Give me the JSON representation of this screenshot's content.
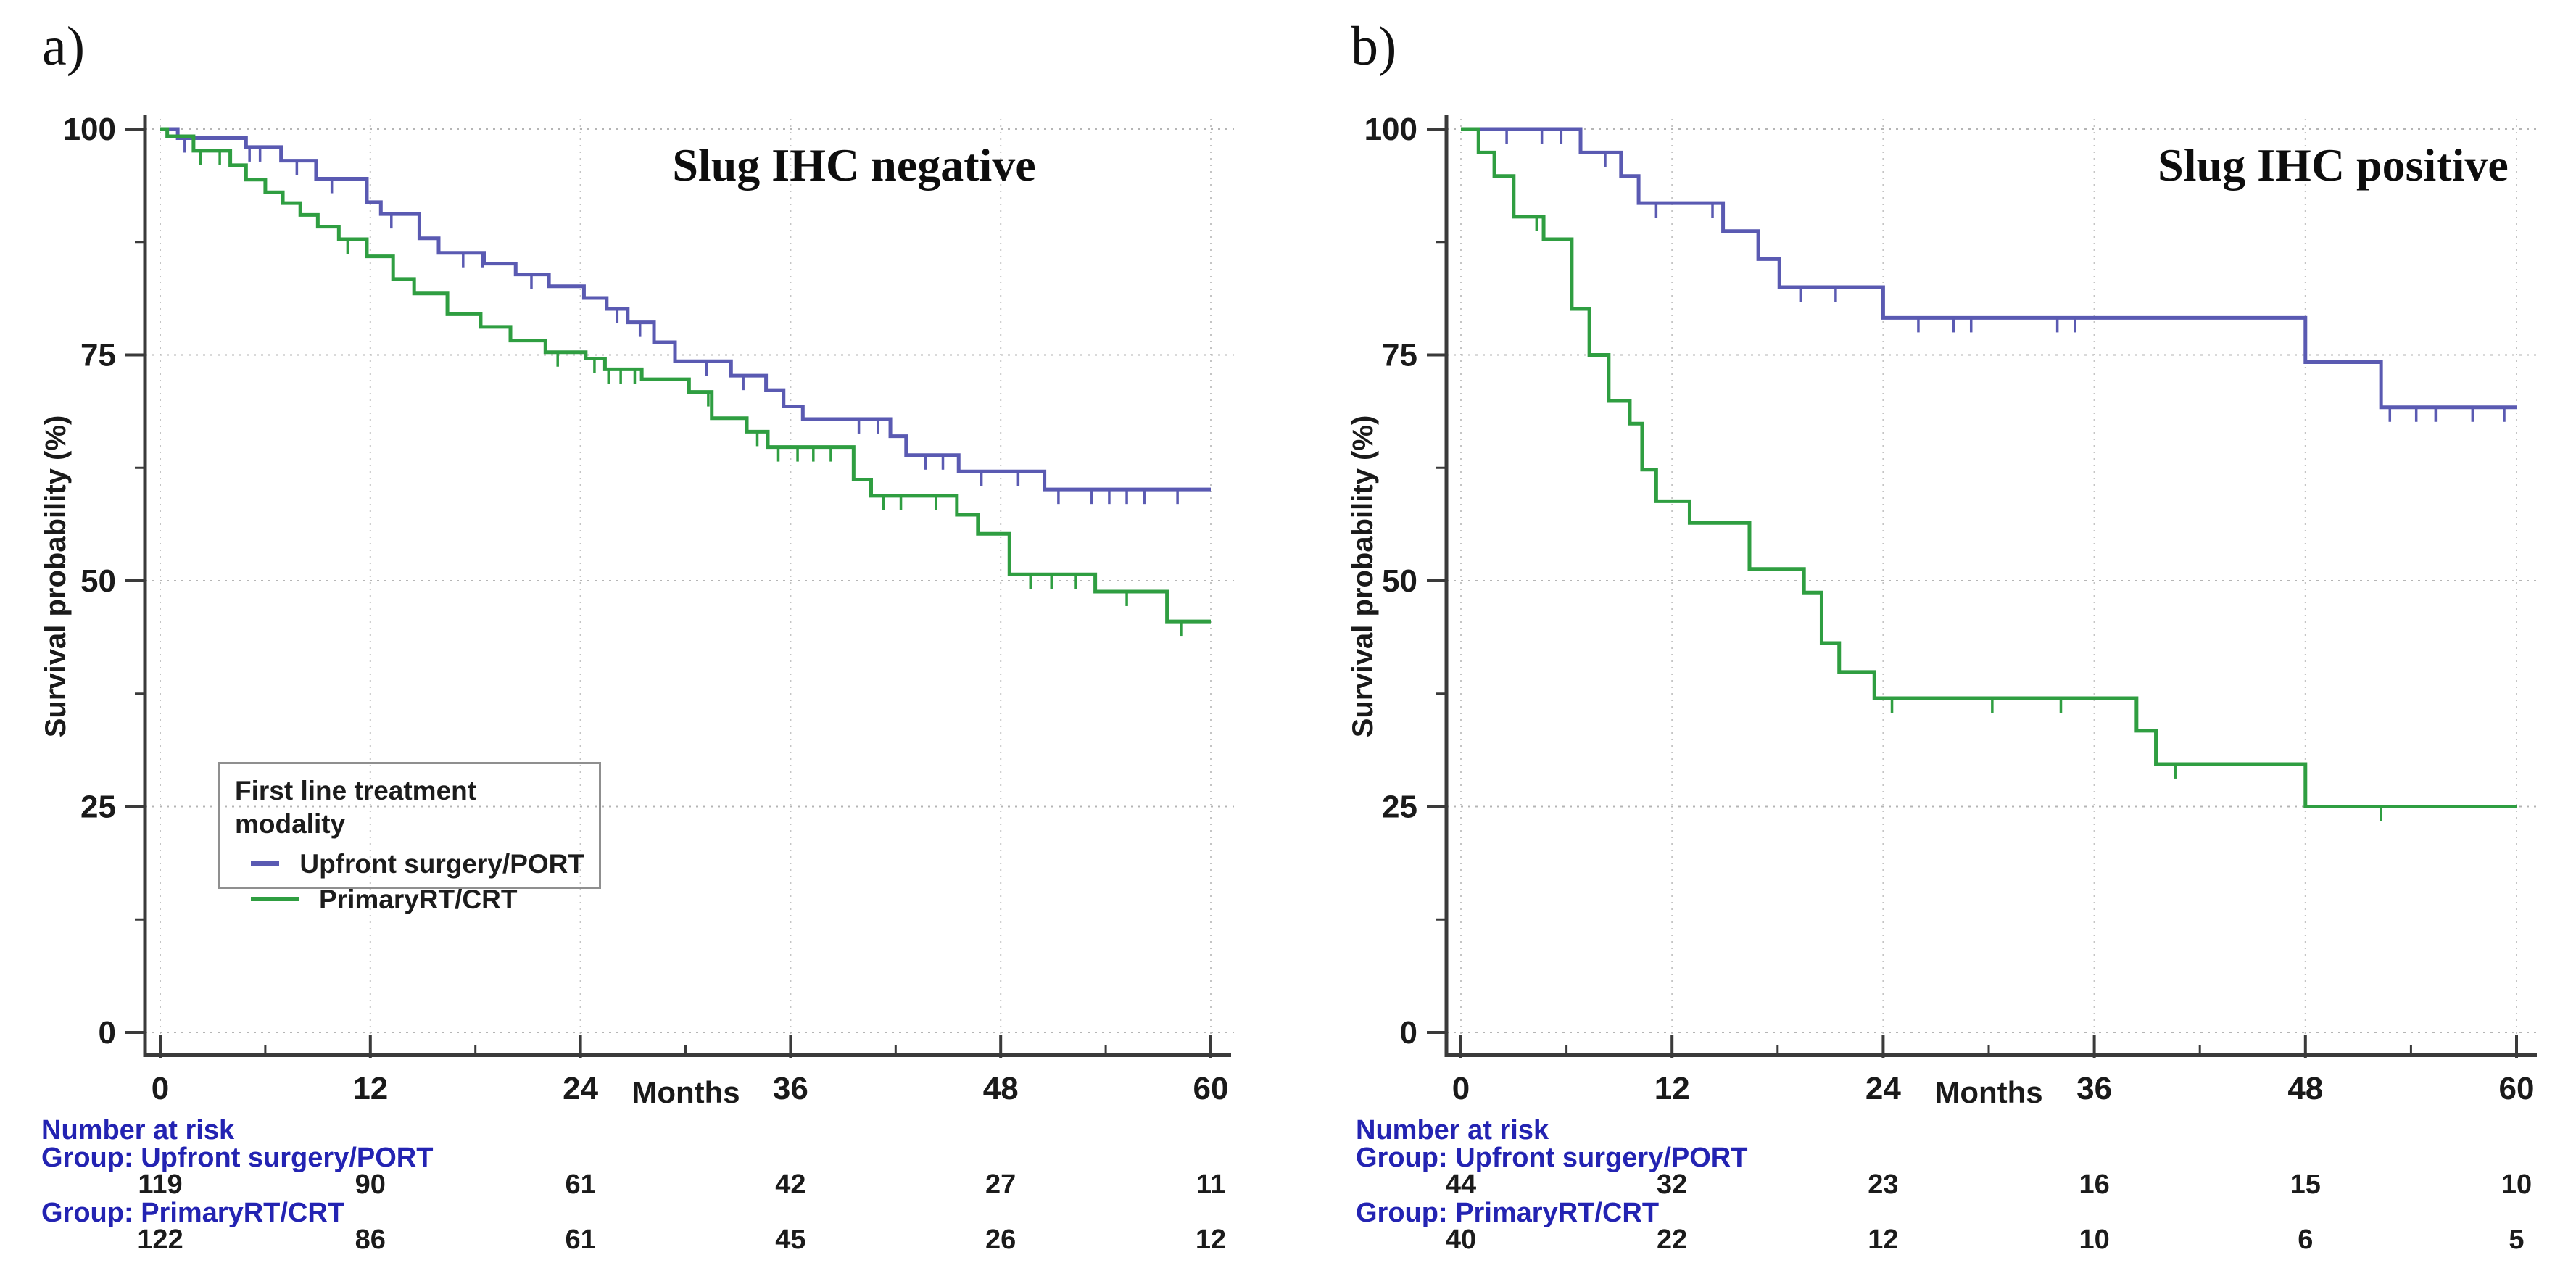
{
  "figure_type": "kaplan-meier-survival-curves",
  "chart_data": [
    {
      "type": "line",
      "subtype": "step-survival",
      "panel_label": "a)",
      "title": "Slug IHC negative",
      "xlabel": "Months",
      "ylabel": "Survival probability (%)",
      "xlim": [
        0,
        60
      ],
      "ylim": [
        0,
        100
      ],
      "x_ticks": [
        0,
        12,
        24,
        36,
        48,
        60
      ],
      "x_minor_ticks": [
        6,
        18,
        30,
        42,
        54
      ],
      "y_ticks": [
        100,
        75,
        50,
        25,
        0
      ],
      "y_minor_ticks": [
        87.5,
        62.5,
        37.5,
        12.5
      ],
      "grid": true,
      "legend": {
        "visible": true,
        "position": "inside-left-lower",
        "title": "First line treatment modality"
      },
      "series": [
        {
          "name": "Upfront surgery/PORT",
          "color": "#5a5ab2",
          "steps": [
            [
              0,
              100
            ],
            [
              1,
              99
            ],
            [
              4.9,
              98
            ],
            [
              6.9,
              96.5
            ],
            [
              8.9,
              94.5
            ],
            [
              11.8,
              91.9
            ],
            [
              12.6,
              90.6
            ],
            [
              14.8,
              87.9
            ],
            [
              15.9,
              86.3
            ],
            [
              18.5,
              85.1
            ],
            [
              20.3,
              83.9
            ],
            [
              22.2,
              82.6
            ],
            [
              24.2,
              81.3
            ],
            [
              25.5,
              80.1
            ],
            [
              26.7,
              78.6
            ],
            [
              28.2,
              76.4
            ],
            [
              29.4,
              74.3
            ],
            [
              32.6,
              72.7
            ],
            [
              34.6,
              71.1
            ],
            [
              35.6,
              69.3
            ],
            [
              36.7,
              67.9
            ],
            [
              41.7,
              66
            ],
            [
              42.6,
              63.9
            ],
            [
              45.6,
              62.1
            ],
            [
              50.5,
              60.1
            ],
            [
              60,
              60.1
            ]
          ],
          "censor_ticks": [
            1.4,
            5.1,
            5.7,
            7.8,
            9.8,
            13.2,
            17.3,
            18.4,
            21.2,
            26.1,
            27.4,
            31.2,
            33.3,
            39.9,
            41,
            43.7,
            44.7,
            46.9,
            49,
            51.3,
            53.2,
            54.2,
            55.2,
            56.2,
            58.1
          ]
        },
        {
          "name": "PrimaryRT/CRT",
          "color": "#2f9e41",
          "steps": [
            [
              0,
              100
            ],
            [
              0.4,
              99.2
            ],
            [
              1.9,
              97.6
            ],
            [
              4,
              96
            ],
            [
              4.9,
              94.4
            ],
            [
              6,
              93
            ],
            [
              7,
              91.8
            ],
            [
              8,
              90.5
            ],
            [
              9,
              89.2
            ],
            [
              10.2,
              87.8
            ],
            [
              11.8,
              85.9
            ],
            [
              13.3,
              83.4
            ],
            [
              14.5,
              81.8
            ],
            [
              16.4,
              79.5
            ],
            [
              18.3,
              78.1
            ],
            [
              20,
              76.6
            ],
            [
              22,
              75.3
            ],
            [
              24.3,
              74.6
            ],
            [
              25.4,
              73.4
            ],
            [
              27.5,
              72.3
            ],
            [
              30.2,
              70.9
            ],
            [
              31.5,
              68
            ],
            [
              33.5,
              66.5
            ],
            [
              34.7,
              64.8
            ],
            [
              39.6,
              61.2
            ],
            [
              40.6,
              59.4
            ],
            [
              45.5,
              57.3
            ],
            [
              46.7,
              55.2
            ],
            [
              48.5,
              50.7
            ],
            [
              53.4,
              48.8
            ],
            [
              57.5,
              45.5
            ],
            [
              60,
              45.5
            ]
          ],
          "censor_ticks": [
            2.3,
            3.4,
            10.7,
            22.7,
            24.8,
            25.6,
            26.3,
            27.1,
            31.3,
            34.1,
            35.3,
            36.4,
            37.3,
            38.3,
            41.3,
            42.3,
            44.3,
            49.7,
            50.9,
            52.3,
            55.2,
            58.3
          ]
        }
      ],
      "number_at_risk": {
        "header": "Number at risk",
        "text_color": "#2323b2",
        "groups": [
          {
            "label": "Group: Upfront surgery/PORT",
            "values": [
              119,
              90,
              61,
              42,
              27,
              11
            ]
          },
          {
            "label": "Group: PrimaryRT/CRT",
            "values": [
              122,
              86,
              61,
              45,
              26,
              12
            ]
          }
        ]
      }
    },
    {
      "type": "line",
      "subtype": "step-survival",
      "panel_label": "b)",
      "title": "Slug IHC positive",
      "xlabel": "Months",
      "ylabel": "Survival probability (%)",
      "xlim": [
        0,
        60
      ],
      "ylim": [
        0,
        100
      ],
      "x_ticks": [
        0,
        12,
        24,
        36,
        48,
        60
      ],
      "x_minor_ticks": [
        6,
        18,
        30,
        42,
        54
      ],
      "y_ticks": [
        100,
        75,
        50,
        25,
        0
      ],
      "y_minor_ticks": [
        87.5,
        62.5,
        37.5,
        12.5
      ],
      "grid": true,
      "legend": {
        "visible": false
      },
      "series": [
        {
          "name": "Upfront surgery/PORT",
          "color": "#5a5ab2",
          "steps": [
            [
              0,
              100
            ],
            [
              6.8,
              97.4
            ],
            [
              9.1,
              94.8
            ],
            [
              10.1,
              91.8
            ],
            [
              14.9,
              88.7
            ],
            [
              16.9,
              85.6
            ],
            [
              18.1,
              82.5
            ],
            [
              24,
              79.1
            ],
            [
              48,
              74.2
            ],
            [
              52.3,
              69.2
            ],
            [
              60,
              69.2
            ]
          ],
          "censor_ticks": [
            2.6,
            4.6,
            5.7,
            8.2,
            11.1,
            14.3,
            19.3,
            21.3,
            26,
            28,
            29,
            33.9,
            34.9,
            52.8,
            54.3,
            55.4,
            57.5,
            59.3
          ]
        },
        {
          "name": "PrimaryRT/CRT",
          "color": "#2f9e41",
          "steps": [
            [
              0,
              100
            ],
            [
              1,
              97.4
            ],
            [
              1.9,
              94.8
            ],
            [
              3,
              90.3
            ],
            [
              4.7,
              87.8
            ],
            [
              6.3,
              80.1
            ],
            [
              7.3,
              75
            ],
            [
              8.4,
              69.9
            ],
            [
              9.6,
              67.4
            ],
            [
              10.3,
              62.3
            ],
            [
              11.1,
              58.8
            ],
            [
              13,
              56.4
            ],
            [
              16.4,
              51.3
            ],
            [
              19.5,
              48.7
            ],
            [
              20.5,
              43.1
            ],
            [
              21.5,
              39.9
            ],
            [
              23.5,
              37
            ],
            [
              38.4,
              33.4
            ],
            [
              39.5,
              29.7
            ],
            [
              48,
              25
            ],
            [
              60,
              25
            ]
          ],
          "censor_ticks": [
            4.3,
            24.5,
            30.2,
            34.1,
            40.6,
            52.3
          ]
        }
      ],
      "number_at_risk": {
        "header": "Number at risk",
        "text_color": "#2323b2",
        "groups": [
          {
            "label": "Group: Upfront surgery/PORT",
            "values": [
              44,
              32,
              23,
              16,
              15,
              10
            ]
          },
          {
            "label": "Group: PrimaryRT/CRT",
            "values": [
              40,
              22,
              12,
              10,
              6,
              5
            ]
          }
        ]
      }
    }
  ],
  "style_colors": {
    "axis": "#3a3a3a",
    "tick_text": "#1a1a1a",
    "grid_horizontal": "#b5b5b5",
    "grid_vertical": "#c4c4c4"
  }
}
